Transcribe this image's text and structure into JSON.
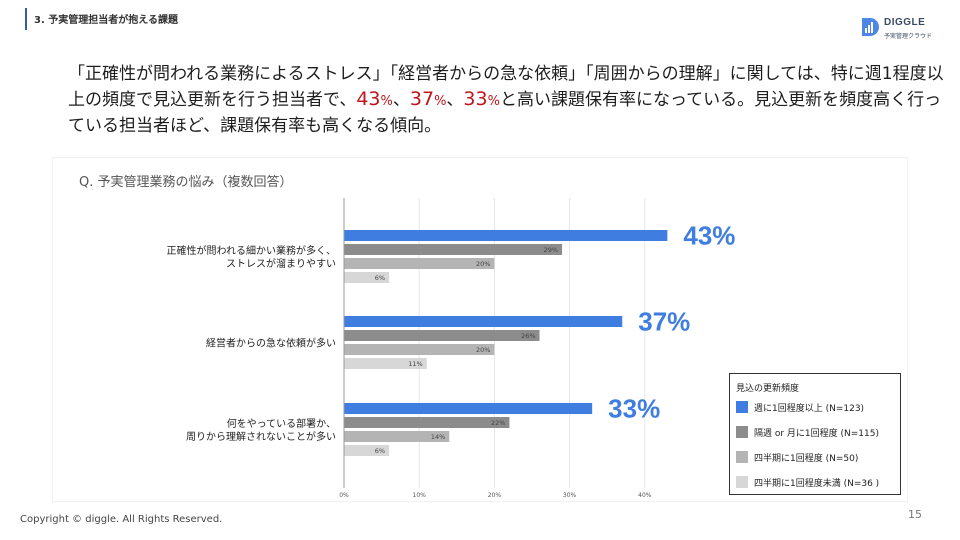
{
  "header": {
    "section_title": "3. 予実管理担当者が抱える課題"
  },
  "logo": {
    "name": "DIGGLE",
    "subtitle": "予実管理クラウド"
  },
  "lead": {
    "part1": "「正確性が問われる業務によるストレス」「経営者からの急な依頼」「周囲からの理解」に関しては、特に週1程度以上の頻度で見込更新を行う担当者で、",
    "num1": "43",
    "pct1": "%",
    "sep1": "、",
    "num2": "37",
    "pct2": "%",
    "sep2": "、",
    "num3": "33",
    "pct3": "%",
    "part2": "と高い課題保有率になっている。見込更新を頻度高く行っている担当者ほど、課題保有率も高くなる傾向。"
  },
  "chart_data": {
    "type": "bar",
    "orientation": "horizontal",
    "title": "Q. 予実管理業務の悩み（複数回答）",
    "categories": [
      [
        "正確性が問われる細かい業務が多く、",
        "ストレスが溜まりやすい"
      ],
      [
        "経営者からの急な依頼が多い"
      ],
      [
        "何をやっている部署か、",
        "周りから理解されないことが多い"
      ]
    ],
    "series": [
      {
        "name": "週に1回程度以上 (N=123)",
        "color": "#3f7ee0",
        "values": [
          43,
          37,
          33
        ],
        "labels": [
          "43%",
          "37%",
          "33%"
        ]
      },
      {
        "name": "隔週 or 月に1回程度 (N=115)",
        "color": "#8c8c8c",
        "values": [
          29,
          26,
          22
        ],
        "labels": [
          "29%",
          "26%",
          "22%"
        ]
      },
      {
        "name": "四半期に1回程度 (N=50)",
        "color": "#b4b4b4",
        "values": [
          20,
          20,
          14
        ],
        "labels": [
          "20%",
          "20%",
          "14%"
        ]
      },
      {
        "name": "四半期に1回程度未満 (N=36 )",
        "color": "#d7d7d7",
        "values": [
          6,
          11,
          6
        ],
        "labels": [
          "6%",
          "11%",
          "6%"
        ]
      }
    ],
    "xlim": [
      0,
      45
    ],
    "xticks": [
      "0%",
      "10%",
      "20%",
      "30%",
      "40%"
    ],
    "grid": true,
    "legend_title": "見込の更新頻度",
    "legend_position": "bottom-right"
  },
  "footer": {
    "copyright": "Copyright © diggle. All Rights Reserved.",
    "page_number": "15"
  }
}
